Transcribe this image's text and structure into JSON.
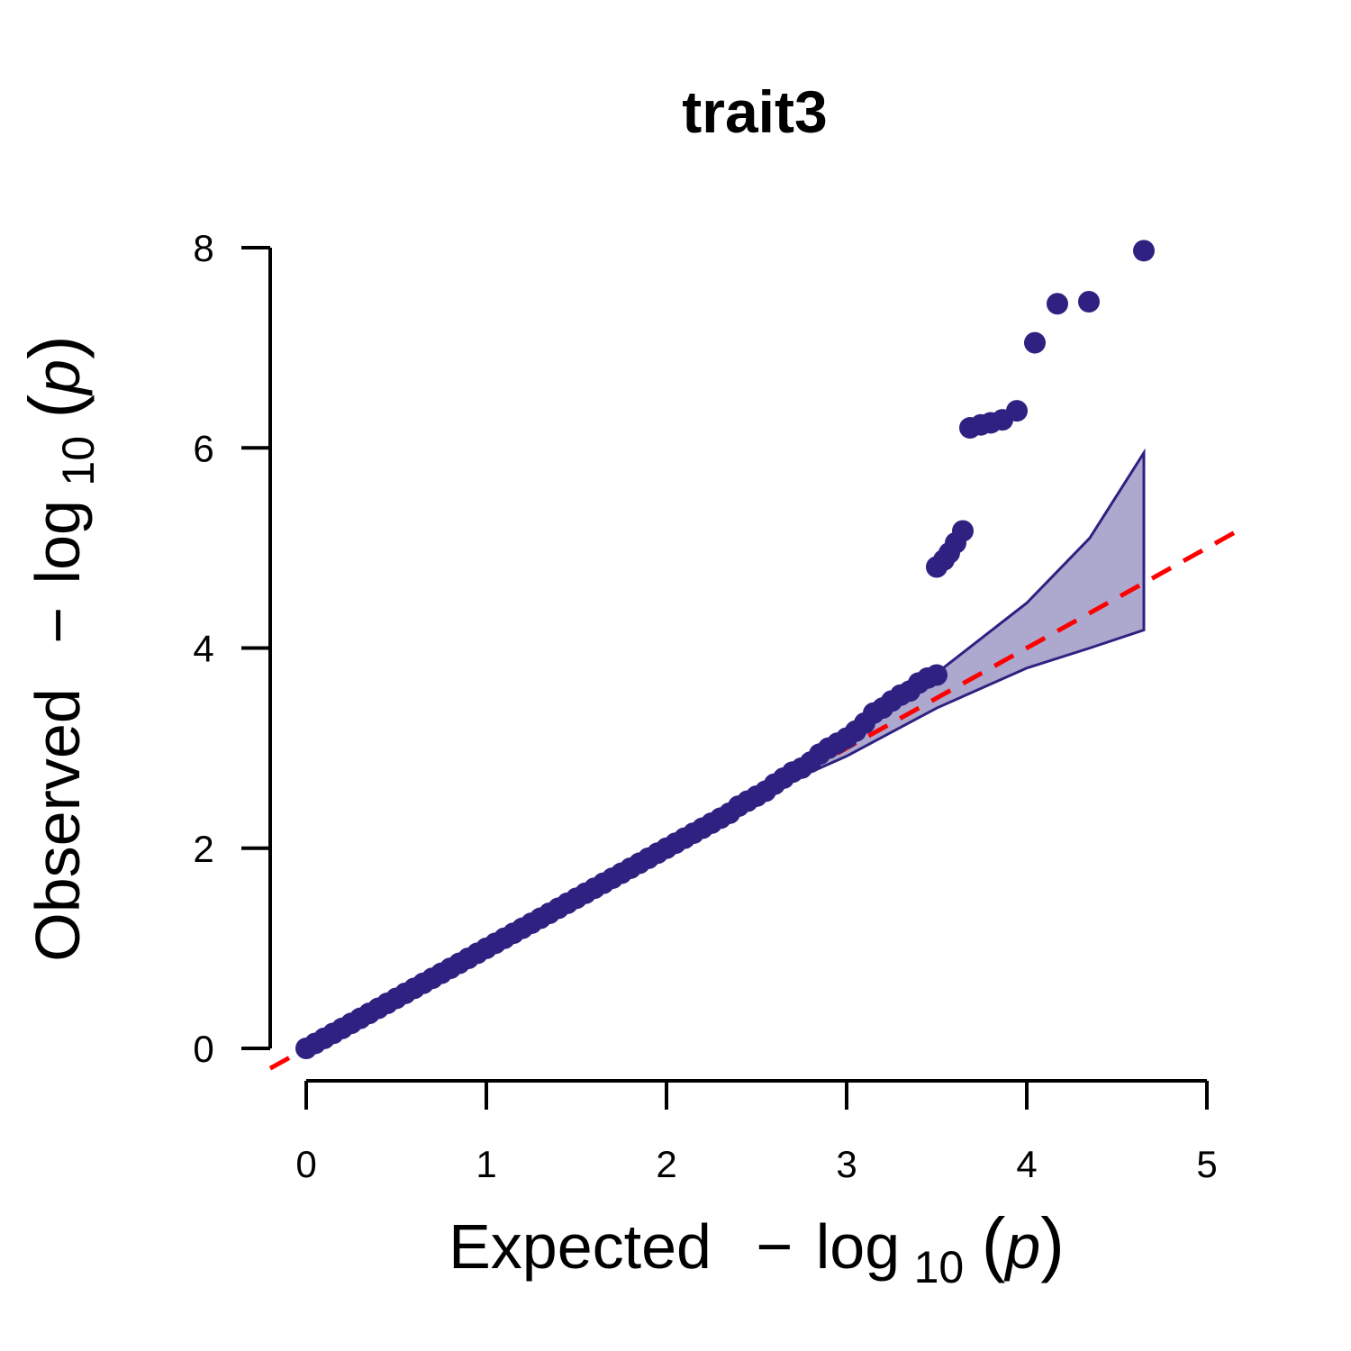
{
  "chart_data": {
    "type": "scatter",
    "title": "trait3",
    "xlabel": {
      "prefix": "Expected",
      "minus": "−",
      "log": "log",
      "sub": "10",
      "arg": "p"
    },
    "ylabel": {
      "prefix": "Observed",
      "minus": "−",
      "log": "log",
      "sub": "10",
      "arg": "p"
    },
    "xlim": [
      0,
      5
    ],
    "ylim": [
      0,
      8
    ],
    "xticks": [
      "0",
      "1",
      "2",
      "3",
      "4",
      "5"
    ],
    "yticks": [
      "0",
      "2",
      "4",
      "6",
      "8"
    ],
    "grid": false,
    "point_color": "#2e2182",
    "band_fill": "#ada8ce",
    "reference_line_color": "#ff0000",
    "reference_line": {
      "slope": 1,
      "intercept": 0
    },
    "confidence_band": {
      "upper": [
        [
          2.7,
          2.72
        ],
        [
          3.0,
          3.15
        ],
        [
          3.5,
          3.75
        ],
        [
          4.0,
          4.45
        ],
        [
          4.35,
          5.1
        ],
        [
          4.65,
          5.95
        ]
      ],
      "lower": [
        [
          2.7,
          2.68
        ],
        [
          3.0,
          2.92
        ],
        [
          3.5,
          3.4
        ],
        [
          4.0,
          3.8
        ],
        [
          4.35,
          4.0
        ],
        [
          4.65,
          4.18
        ]
      ]
    },
    "points": {
      "x": [
        0,
        0.05,
        0.1,
        0.15,
        0.2,
        0.25,
        0.3,
        0.35,
        0.4,
        0.45,
        0.5,
        0.55,
        0.6,
        0.65,
        0.7,
        0.75,
        0.8,
        0.85,
        0.9,
        0.95,
        1.0,
        1.05,
        1.1,
        1.15,
        1.2,
        1.25,
        1.3,
        1.35,
        1.4,
        1.45,
        1.5,
        1.55,
        1.6,
        1.65,
        1.7,
        1.75,
        1.8,
        1.85,
        1.9,
        1.95,
        2.0,
        2.05,
        2.1,
        2.15,
        2.2,
        2.25,
        2.3,
        2.35,
        2.4,
        2.45,
        2.5,
        2.55,
        2.6,
        2.65,
        2.7,
        2.75,
        2.8,
        2.85,
        2.9,
        2.95,
        3.0,
        3.05,
        3.1,
        3.15,
        3.2,
        3.25,
        3.3,
        3.35,
        3.4,
        3.45,
        3.5,
        3.5,
        3.54,
        3.57,
        3.605,
        3.645,
        3.685,
        3.745,
        3.8,
        3.865,
        3.945,
        4.045,
        4.17,
        4.345,
        4.65
      ],
      "y": [
        0,
        0.05,
        0.1,
        0.15,
        0.2,
        0.25,
        0.3,
        0.35,
        0.4,
        0.45,
        0.5,
        0.55,
        0.6,
        0.65,
        0.7,
        0.75,
        0.8,
        0.85,
        0.9,
        0.95,
        1.0,
        1.05,
        1.1,
        1.15,
        1.2,
        1.25,
        1.3,
        1.35,
        1.4,
        1.45,
        1.5,
        1.55,
        1.6,
        1.65,
        1.7,
        1.75,
        1.8,
        1.85,
        1.9,
        1.95,
        2.0,
        2.05,
        2.1,
        2.15,
        2.2,
        2.25,
        2.3,
        2.35,
        2.42,
        2.47,
        2.52,
        2.57,
        2.64,
        2.7,
        2.76,
        2.8,
        2.86,
        2.94,
        3.0,
        3.05,
        3.1,
        3.17,
        3.25,
        3.35,
        3.4,
        3.47,
        3.53,
        3.57,
        3.65,
        3.7,
        3.73,
        4.81,
        4.88,
        4.95,
        5.05,
        5.17,
        6.2,
        6.23,
        6.25,
        6.28,
        6.37,
        7.05,
        7.44,
        7.46,
        7.97
      ]
    }
  }
}
